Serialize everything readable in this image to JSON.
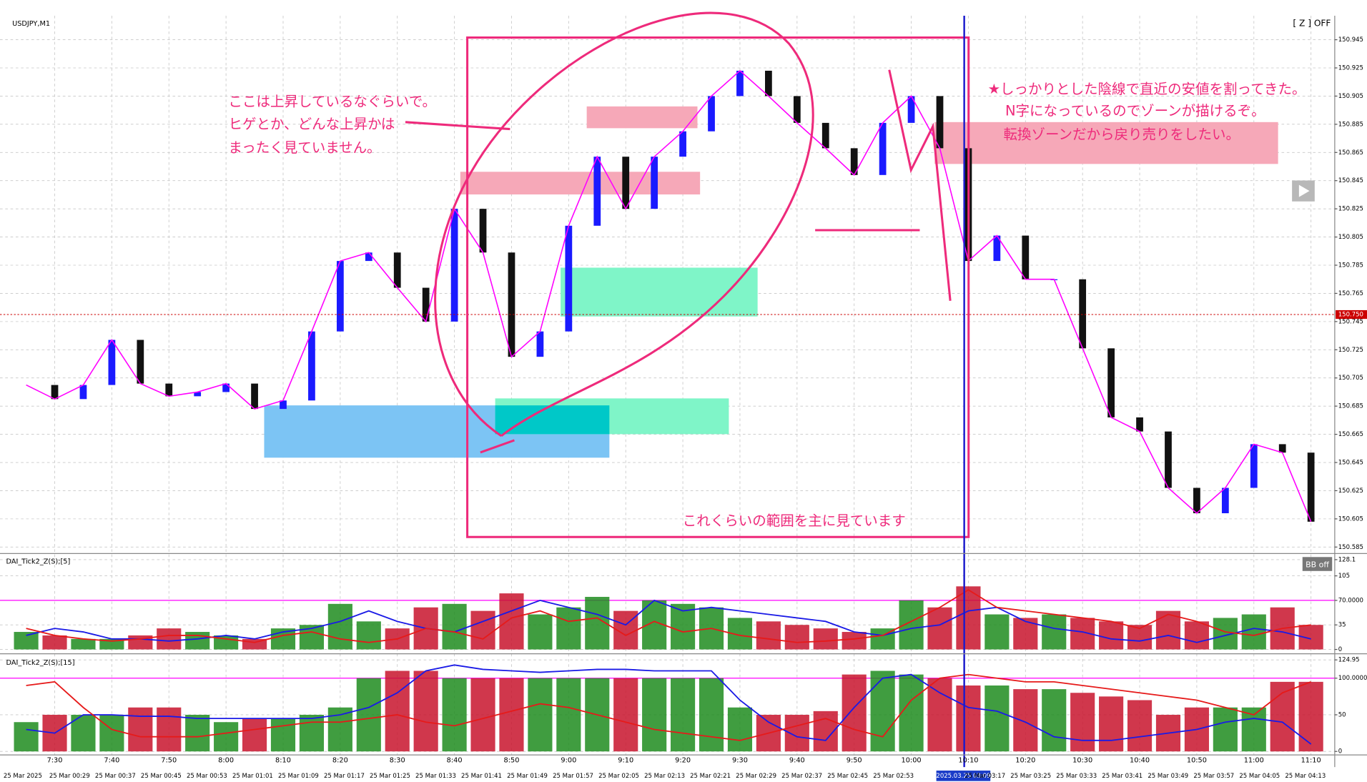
{
  "header": {
    "z_off": "[ Z ] OFF",
    "bb": "BB off",
    "cursor_time": "2025.03.25 03:09"
  },
  "annotations": [
    "ここは上昇しているなぐらいで。",
    "ヒゲとか、どんな上昇かは",
    "まったく見ていません。",
    "★しっかりとした陰線で直近の安値を割ってきた。",
    "N字になっているのでゾーンが描けるぞ。",
    "転換ゾーンだから戻り売りをしたい。",
    "これくらいの範囲を主に見ています"
  ],
  "date_labels": [
    "25 Mar 2025",
    "25 Mar 00:29",
    "25 Mar 00:37",
    "25 Mar 00:45",
    "25 Mar 00:53",
    "25 Mar 01:01",
    "25 Mar 01:09",
    "25 Mar 01:17",
    "25 Mar 01:25",
    "25 Mar 01:33",
    "25 Mar 01:41",
    "25 Mar 01:49",
    "25 Mar 01:57",
    "25 Mar 02:05",
    "25 Mar 02:13",
    "25 Mar 02:21",
    "25 Mar 02:29",
    "25 Mar 02:37",
    "25 Mar 02:45",
    "25 Mar 02:53",
    "25 Mar 03:17",
    "25 Mar 03:25",
    "25 Mar 03:33",
    "25 Mar 03:41",
    "25 Mar 03:49",
    "25 Mar 03:57",
    "25 Mar 04:05",
    "25 Mar 04:13"
  ],
  "chart_data": [
    {
      "type": "candlestick",
      "title": "USDJPY,M1",
      "color": "#ff00ff",
      "up_color": "#1a1aff",
      "down_color": "#111111",
      "grid": true,
      "categories": [
        null,
        "7:30",
        null,
        "7:40",
        null,
        "7:50",
        null,
        "8:00",
        null,
        "8:10",
        null,
        "8:20",
        null,
        "8:30",
        null,
        "8:40",
        null,
        "8:50",
        null,
        "9:00",
        null,
        "9:10",
        null,
        "9:20",
        null,
        "9:30",
        null,
        "9:40",
        null,
        "9:50",
        null,
        "10:00",
        null,
        "10:10",
        null,
        "10:20",
        null,
        "10:30",
        null,
        "10:40",
        null,
        "10:50",
        null,
        "11:00",
        null,
        "11:10"
      ],
      "values": [
        150.7,
        150.69,
        150.7,
        150.732,
        150.701,
        150.692,
        150.695,
        150.701,
        150.683,
        150.689,
        150.738,
        150.788,
        150.794,
        150.769,
        150.745,
        150.825,
        150.794,
        150.72,
        150.738,
        150.813,
        150.862,
        150.825,
        150.862,
        150.88,
        150.905,
        150.923,
        150.905,
        150.886,
        150.868,
        150.849,
        150.886,
        150.905,
        150.868,
        150.788,
        150.806,
        150.775,
        150.775,
        150.726,
        150.677,
        150.667,
        150.627,
        150.609,
        150.627,
        150.658,
        150.652,
        150.603
      ],
      "ylim": [
        150.581,
        150.962
      ],
      "yticks": [
        150.945,
        150.925,
        150.905,
        150.885,
        150.865,
        150.845,
        150.825,
        150.805,
        150.785,
        150.765,
        150.745,
        150.725,
        150.705,
        150.685,
        150.665,
        150.645,
        150.625,
        150.605,
        150.585
      ],
      "current_price": {
        "value": 150.75,
        "label": "150.750"
      }
    },
    {
      "type": "indicator",
      "title": "DAI_Tick2_Z(S);[5]",
      "ylim": [
        0,
        128.1
      ],
      "yticks": [
        128.1,
        105,
        {
          "value": 70,
          "label": "70.0000"
        },
        35,
        0
      ],
      "bars": [
        25,
        20,
        15,
        15,
        20,
        30,
        25,
        20,
        15,
        30,
        35,
        65,
        40,
        30,
        60,
        65,
        55,
        80,
        50,
        60,
        75,
        55,
        70,
        65,
        60,
        45,
        40,
        35,
        30,
        25,
        30,
        70,
        60,
        90,
        50,
        45,
        50,
        45,
        40,
        35,
        55,
        40,
        45,
        50,
        60,
        35
      ],
      "series": [
        {
          "color": "#1a1ae6",
          "values": [
            20,
            30,
            25,
            15,
            15,
            12,
            15,
            20,
            15,
            25,
            30,
            40,
            55,
            40,
            30,
            25,
            40,
            55,
            70,
            60,
            50,
            35,
            70,
            55,
            60,
            55,
            50,
            45,
            40,
            25,
            20,
            30,
            35,
            55,
            60,
            40,
            30,
            25,
            15,
            12,
            20,
            10,
            20,
            30,
            25,
            15
          ]
        },
        {
          "color": "#e61a1a",
          "values": [
            30,
            20,
            15,
            12,
            15,
            20,
            20,
            15,
            10,
            20,
            25,
            15,
            10,
            15,
            30,
            25,
            15,
            45,
            55,
            40,
            45,
            20,
            40,
            25,
            30,
            20,
            15,
            10,
            12,
            15,
            20,
            40,
            60,
            85,
            60,
            55,
            50,
            45,
            40,
            30,
            50,
            40,
            25,
            20,
            30,
            35
          ]
        }
      ]
    },
    {
      "type": "indicator",
      "title": "DAI_Tick2_Z(S);[15]",
      "ylim": [
        0,
        124.95
      ],
      "yticks": [
        124.95,
        {
          "value": 100,
          "label": "100.0000"
        },
        50,
        0
      ],
      "bars": [
        40,
        50,
        50,
        50,
        60,
        60,
        50,
        40,
        45,
        45,
        50,
        60,
        100,
        110,
        110,
        100,
        100,
        100,
        100,
        100,
        100,
        100,
        100,
        100,
        100,
        60,
        50,
        50,
        55,
        105,
        110,
        105,
        100,
        90,
        90,
        85,
        85,
        80,
        75,
        70,
        50,
        60,
        60,
        60,
        95,
        95
      ],
      "series": [
        {
          "color": "#1a1ae6",
          "values": [
            30,
            25,
            50,
            50,
            48,
            48,
            45,
            45,
            45,
            45,
            45,
            50,
            60,
            80,
            110,
            118,
            112,
            110,
            108,
            110,
            112,
            112,
            110,
            110,
            110,
            70,
            40,
            20,
            15,
            60,
            100,
            105,
            80,
            60,
            55,
            40,
            20,
            15,
            15,
            20,
            25,
            30,
            40,
            45,
            40,
            10
          ]
        },
        {
          "color": "#e61a1a",
          "values": [
            90,
            95,
            60,
            30,
            20,
            20,
            20,
            25,
            30,
            35,
            40,
            40,
            45,
            50,
            40,
            35,
            45,
            55,
            65,
            60,
            50,
            40,
            30,
            25,
            20,
            15,
            25,
            35,
            45,
            30,
            20,
            70,
            100,
            105,
            100,
            95,
            95,
            90,
            85,
            80,
            75,
            70,
            60,
            50,
            80,
            95
          ]
        }
      ]
    }
  ]
}
